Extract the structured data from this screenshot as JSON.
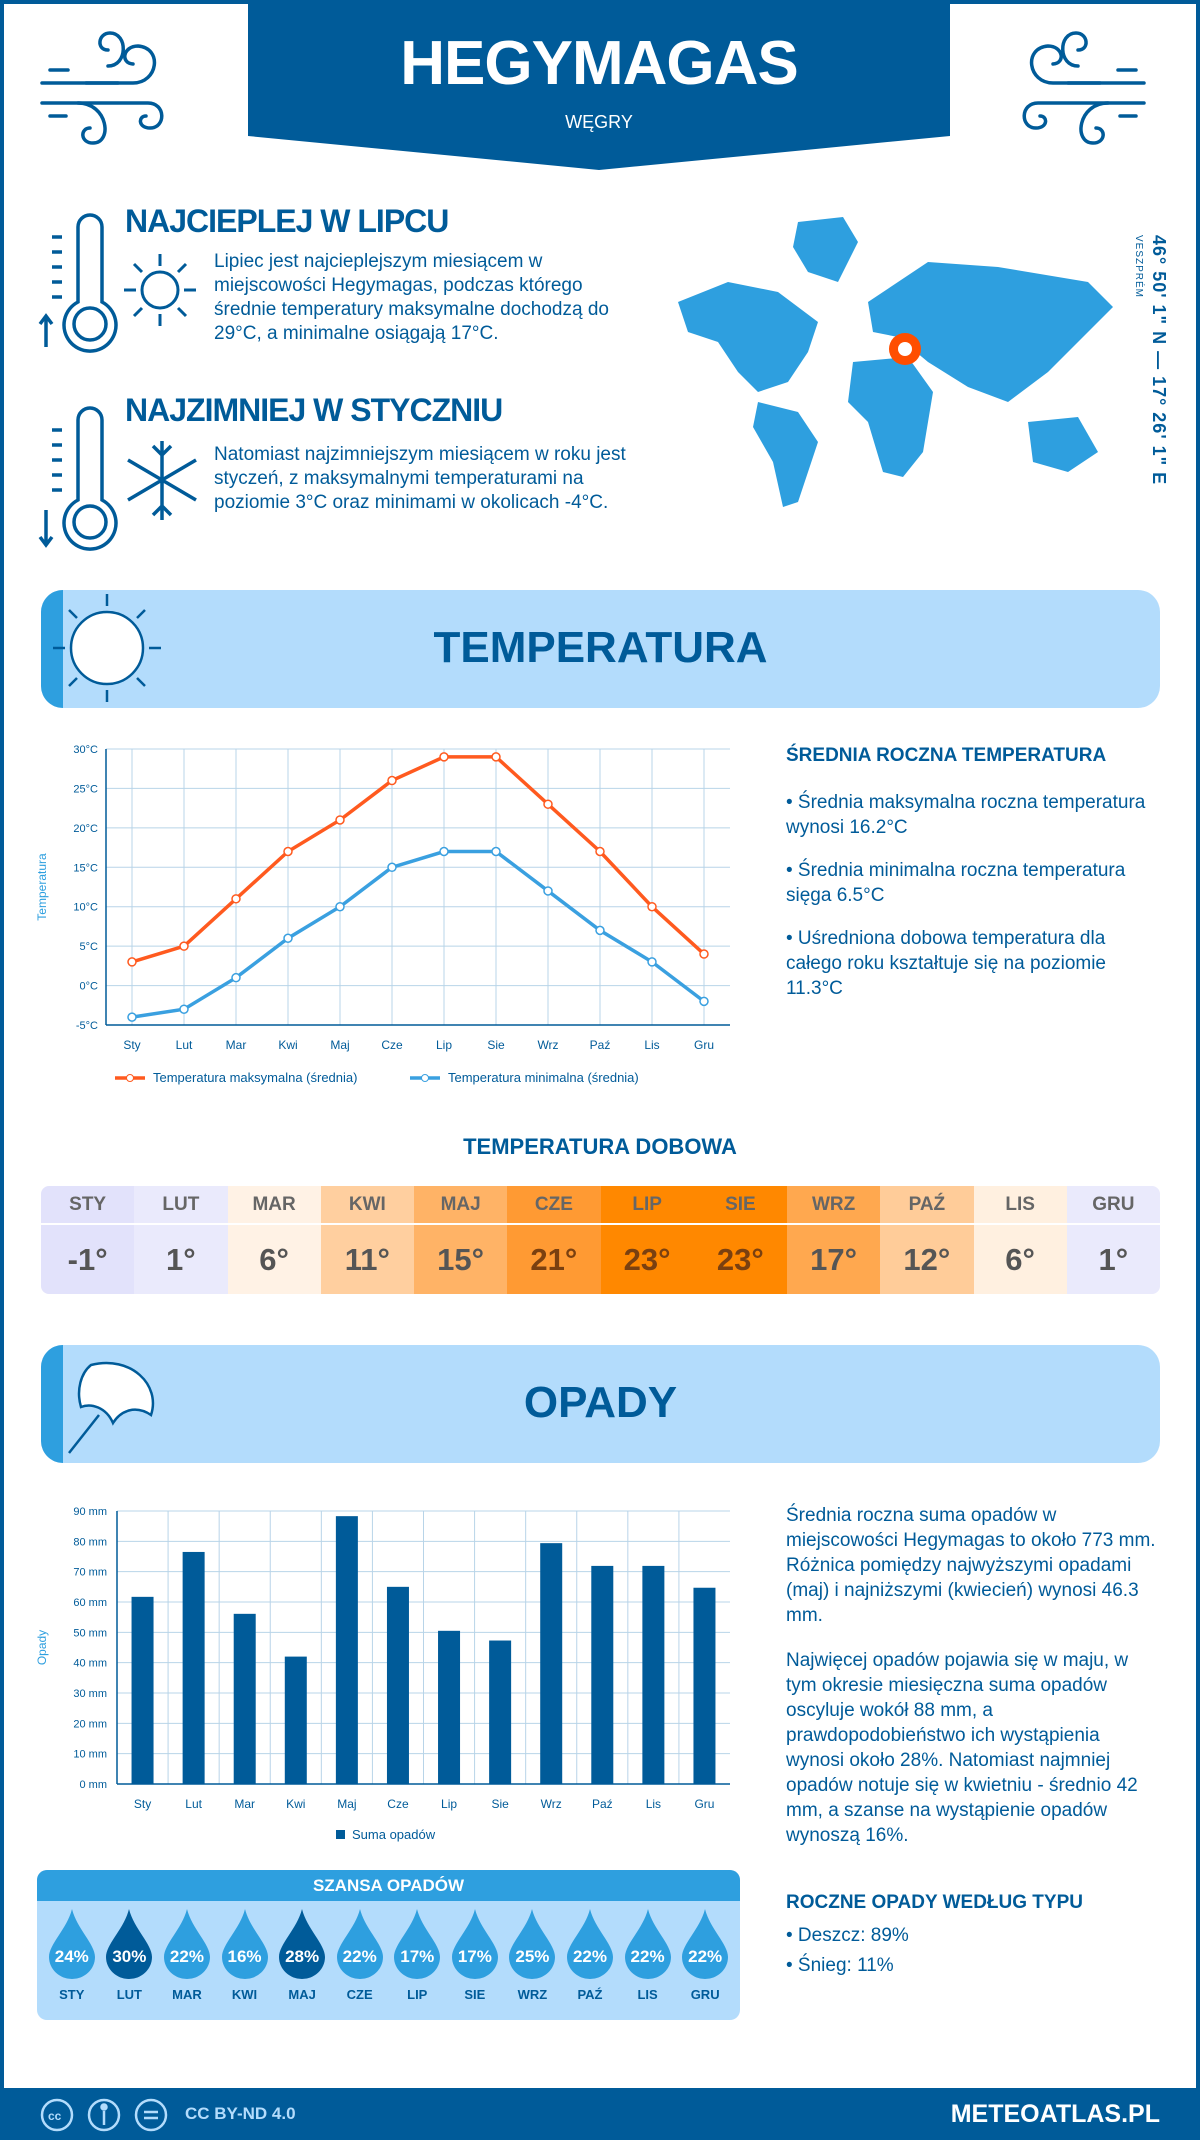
{
  "header": {
    "title": "HEGYMAGAS",
    "country": "WĘGRY"
  },
  "warmest": {
    "heading": "NAJCIEPLEJ W LIPCU",
    "text": "Lipiec jest najcieplejszym miesiącem w miejscowości Hegymagas, podczas którego średnie temperatury maksymalne dochodzą do 29°C, a minimalne osiągają 17°C."
  },
  "coldest": {
    "heading": "NAJZIMNIEJ W STYCZNIU",
    "text": "Natomiast najzimniejszym miesiącem w roku jest styczeń, z maksymalnymi temperaturami na poziomie 3°C oraz minimami w okolicach -4°C."
  },
  "location": {
    "coords": "46° 50' 1\" N — 17° 26' 1\" E",
    "region": "VESZPRÉM"
  },
  "temperature": {
    "section_title": "TEMPERATURA",
    "summary_heading": "ŚREDNIA ROCZNA TEMPERATURA",
    "bullets": [
      "• Średnia maksymalna roczna temperatura wynosi 16.2°C",
      "• Średnia minimalna roczna temperatura sięga 6.5°C",
      "• Uśredniona dobowa temperatura dla całego roku kształtuje się na poziomie 11.3°C"
    ],
    "daily_heading": "TEMPERATURA DOBOWA",
    "daily": [
      {
        "m": "STY",
        "v": "-1°",
        "c": "#e2e2fb"
      },
      {
        "m": "LUT",
        "v": "1°",
        "c": "#eaeafc"
      },
      {
        "m": "MAR",
        "v": "6°",
        "c": "#fff2e5"
      },
      {
        "m": "KWI",
        "v": "11°",
        "c": "#ffcf9f"
      },
      {
        "m": "MAJ",
        "v": "15°",
        "c": "#ffb366"
      },
      {
        "m": "CZE",
        "v": "21°",
        "c": "#ff9a33"
      },
      {
        "m": "LIP",
        "v": "23°",
        "c": "#ff8800"
      },
      {
        "m": "SIE",
        "v": "23°",
        "c": "#ff8800"
      },
      {
        "m": "WRZ",
        "v": "17°",
        "c": "#ffa84f"
      },
      {
        "m": "PAŹ",
        "v": "12°",
        "c": "#ffcc99"
      },
      {
        "m": "LIS",
        "v": "6°",
        "c": "#fff0e0"
      },
      {
        "m": "GRU",
        "v": "1°",
        "c": "#eaeafc"
      }
    ]
  },
  "precipitation": {
    "section_title": "OPADY",
    "text1": "Średnia roczna suma opadów w miejscowości Hegymagas to około 773 mm. Różnica pomiędzy najwyższymi opadami (maj) i najniższymi (kwiecień) wynosi 46.3 mm.",
    "text2": "Najwięcej opadów pojawia się w maju, w tym okresie miesięczna suma opadów oscyluje wokół 88 mm, a prawdopodobieństwo ich wystąpienia wynosi około 28%. Natomiast najmniej opadów notuje się w kwietniu - średnio 42 mm, a szanse na wystąpienie opadów wynoszą 16%.",
    "chance_heading": "SZANSA OPADÓW",
    "chance": [
      {
        "m": "STY",
        "v": "24%",
        "dark": false
      },
      {
        "m": "LUT",
        "v": "30%",
        "dark": true
      },
      {
        "m": "MAR",
        "v": "22%",
        "dark": false
      },
      {
        "m": "KWI",
        "v": "16%",
        "dark": false
      },
      {
        "m": "MAJ",
        "v": "28%",
        "dark": true
      },
      {
        "m": "CZE",
        "v": "22%",
        "dark": false
      },
      {
        "m": "LIP",
        "v": "17%",
        "dark": false
      },
      {
        "m": "SIE",
        "v": "17%",
        "dark": false
      },
      {
        "m": "WRZ",
        "v": "25%",
        "dark": false
      },
      {
        "m": "PAŹ",
        "v": "22%",
        "dark": false
      },
      {
        "m": "LIS",
        "v": "22%",
        "dark": false
      },
      {
        "m": "GRU",
        "v": "22%",
        "dark": false
      }
    ],
    "type_heading": "ROCZNE OPADY WEDŁUG TYPU",
    "types": [
      "• Deszcz: 89%",
      "• Śnieg: 11%"
    ]
  },
  "chart_data": [
    {
      "type": "line",
      "ylabel": "Temperatura",
      "xlabel": "",
      "categories": [
        "Sty",
        "Lut",
        "Mar",
        "Kwi",
        "Maj",
        "Cze",
        "Lip",
        "Sie",
        "Wrz",
        "Paź",
        "Lis",
        "Gru"
      ],
      "ylim": [
        -5,
        30
      ],
      "yticks": [
        "-5°C",
        "0°C",
        "5°C",
        "10°C",
        "15°C",
        "20°C",
        "25°C",
        "30°C"
      ],
      "grid": true,
      "legend": "bottom",
      "series": [
        {
          "name": "Temperatura maksymalna (średnia)",
          "color": "#ff5a1f",
          "values": [
            3,
            5,
            11,
            17,
            21,
            26,
            29,
            29,
            23,
            17,
            10,
            4
          ]
        },
        {
          "name": "Temperatura minimalna (średnia)",
          "color": "#3aa0e0",
          "values": [
            -4,
            -3,
            1,
            6,
            10,
            15,
            17,
            17,
            12,
            7,
            3,
            -2
          ]
        }
      ]
    },
    {
      "type": "bar",
      "ylabel": "Opady",
      "xlabel": "",
      "categories": [
        "Sty",
        "Lut",
        "Mar",
        "Kwi",
        "Maj",
        "Cze",
        "Lip",
        "Sie",
        "Wrz",
        "Paź",
        "Lis",
        "Gru"
      ],
      "ylim": [
        0,
        90
      ],
      "yticks": [
        "0 mm",
        "10 mm",
        "20 mm",
        "30 mm",
        "40 mm",
        "50 mm",
        "60 mm",
        "70 mm",
        "80 mm",
        "90 mm"
      ],
      "grid": true,
      "legend": "bottom",
      "series": [
        {
          "name": "Suma opadów",
          "color": "#005b99",
          "values": [
            61.7,
            76.5,
            56.1,
            42.0,
            88.3,
            65.0,
            50.5,
            47.3,
            79.4,
            71.9,
            71.9,
            64.7
          ]
        }
      ]
    }
  ],
  "footer": {
    "license": "CC BY-ND 4.0",
    "site": "METEOATLAS.PL"
  },
  "colors": {
    "primary": "#005b99",
    "accent": "#2e9fdf",
    "light": "#b3dcfc",
    "marker": "#ff4e00"
  }
}
